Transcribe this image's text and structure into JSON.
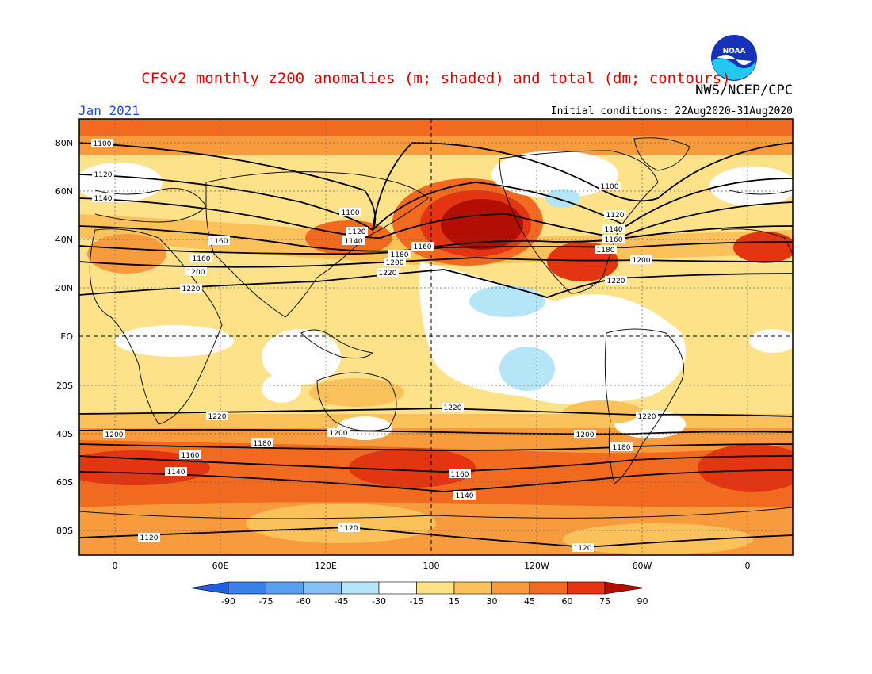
{
  "title": "CFSv2 monthly z200 anomalies (m; shaded) and total (dm; contours)",
  "organization": "NWS/NCEP/CPC",
  "logo_text": "NOAA",
  "valid_month": "Jan 2021",
  "initial_conditions": "Initial conditions: 22Aug2020-31Aug2020",
  "lat_labels": [
    "80N",
    "60N",
    "40N",
    "20N",
    "EQ",
    "20S",
    "40S",
    "60S",
    "80S"
  ],
  "lon_labels": [
    "0",
    "60E",
    "120E",
    "180",
    "120W",
    "60W",
    "0"
  ],
  "colorbar": {
    "labels": [
      "-90",
      "-75",
      "-60",
      "-45",
      "-30",
      "-15",
      "15",
      "30",
      "45",
      "60",
      "75",
      "90"
    ],
    "colors": [
      "#1f5fe0",
      "#3a80ea",
      "#5a9ef0",
      "#86c0f5",
      "#b5e6f7",
      "#ffffff",
      "#fde28a",
      "#fbc15a",
      "#f79b3c",
      "#f26a1f",
      "#e43512",
      "#b30e04"
    ]
  },
  "contours": [
    {
      "value": "1100",
      "label": "1100"
    },
    {
      "value": "1120",
      "label": "1120"
    },
    {
      "value": "1140",
      "label": "1140"
    },
    {
      "value": "1160",
      "label": "1160"
    },
    {
      "value": "1180",
      "label": "1180"
    },
    {
      "value": "1200",
      "label": "1200"
    },
    {
      "value": "1220",
      "label": "1220"
    }
  ]
}
